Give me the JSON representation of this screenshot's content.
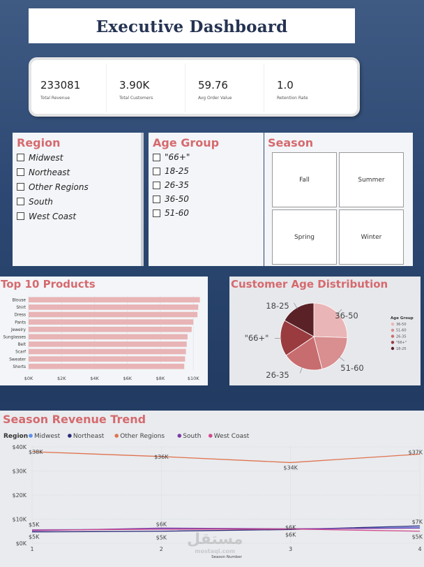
{
  "dashboard": {
    "title": "Executive Dashboard"
  },
  "kpis": [
    {
      "value": "233081",
      "label": "Total Revenue"
    },
    {
      "value": "3.90K",
      "label": "Total Customers"
    },
    {
      "value": "59.76",
      "label": "Avg Order Value"
    },
    {
      "value": "1.0",
      "label": "Retention Rate"
    }
  ],
  "region_slicer": {
    "title": "Region",
    "options": [
      "Midwest",
      "Northeast",
      "Other Regions",
      "South",
      "West Coast"
    ]
  },
  "age_slicer": {
    "title": "Age Group",
    "options": [
      "\"66+\"",
      "18-25",
      "26-35",
      "36-50",
      "51-60"
    ]
  },
  "season_slicer": {
    "title": "Season",
    "tiles": [
      "Fall",
      "Summer",
      "Spring",
      "Winter"
    ]
  },
  "colors": {
    "accent": "#d56a6e",
    "bar": "#e8b4b5",
    "navy": "#253352"
  },
  "chart_data": [
    {
      "type": "bar",
      "orientation": "horizontal",
      "title": "Top 10 Products",
      "categories": [
        "Blouse",
        "Shirt",
        "Dress",
        "Pants",
        "Jewelry",
        "Sunglasses",
        "Belt",
        "Scarf",
        "Sweater",
        "Shorts"
      ],
      "values": [
        10400,
        10300,
        10250,
        10000,
        9900,
        9650,
        9600,
        9550,
        9500,
        9450
      ],
      "xticks": [
        "$0K",
        "$2K",
        "$4K",
        "$6K",
        "$8K",
        "$10K"
      ],
      "xlim": [
        0,
        10500
      ]
    },
    {
      "type": "pie",
      "title": "Customer Age Distribution",
      "legend_title": "Age Group",
      "legend_position": "right",
      "slices": [
        {
          "label": "36-50",
          "value": 25.5,
          "color": "#eab5b6"
        },
        {
          "label": "51-60",
          "value": 20.5,
          "color": "#d98e8f"
        },
        {
          "label": "26-35",
          "value": 19.5,
          "color": "#c86d6f"
        },
        {
          "label": "\"66+\"",
          "value": 17.5,
          "color": "#9a3b3f"
        },
        {
          "label": "18-25",
          "value": 17.0,
          "color": "#5a2227"
        }
      ]
    },
    {
      "type": "line",
      "title": "Season Revenue Trend",
      "legend_title": "Region",
      "xlabel": "Season Number",
      "x": [
        1,
        2,
        3,
        4
      ],
      "xticks": [
        "1",
        "2",
        "3",
        "4"
      ],
      "yticks": [
        "$0K",
        "$10K",
        "$20K",
        "$30K",
        "$40K"
      ],
      "ylim": [
        0,
        40000
      ],
      "series": [
        {
          "name": "Midwest",
          "color": "#5b8ff0",
          "values": [
            5600,
            5900,
            5800,
            6600
          ]
        },
        {
          "name": "Northeast",
          "color": "#2b2a7a",
          "values": [
            4700,
            5000,
            5700,
            7200
          ]
        },
        {
          "name": "Other Regions",
          "color": "#e0724f",
          "values": [
            38000,
            36000,
            33500,
            37000
          ]
        },
        {
          "name": "South",
          "color": "#7b3aa8",
          "values": [
            5200,
            6300,
            6000,
            6300
          ]
        },
        {
          "name": "West Coast",
          "color": "#d14a8c",
          "values": [
            5500,
            5800,
            5900,
            5000
          ]
        }
      ],
      "annotations": [
        {
          "text": "$38K",
          "x": 1,
          "y": 38000
        },
        {
          "text": "$36K",
          "x": 2,
          "y": 36000
        },
        {
          "text": "$34K",
          "x": 3,
          "y": 31500
        },
        {
          "text": "$37K",
          "x": 4,
          "y": 37800
        },
        {
          "text": "$5K",
          "x": 1,
          "y": 7800
        },
        {
          "text": "$5K",
          "x": 1,
          "y": 2800
        },
        {
          "text": "$6K",
          "x": 2,
          "y": 8000
        },
        {
          "text": "$5K",
          "x": 2,
          "y": 2500
        },
        {
          "text": "$6K",
          "x": 3,
          "y": 6600
        },
        {
          "text": "$6K",
          "x": 3,
          "y": 3600
        },
        {
          "text": "$7K",
          "x": 4,
          "y": 9000
        },
        {
          "text": "$5K",
          "x": 4,
          "y": 2800
        }
      ]
    }
  ],
  "watermark": {
    "text": "مستقل",
    "sub": "mostaql.com"
  }
}
